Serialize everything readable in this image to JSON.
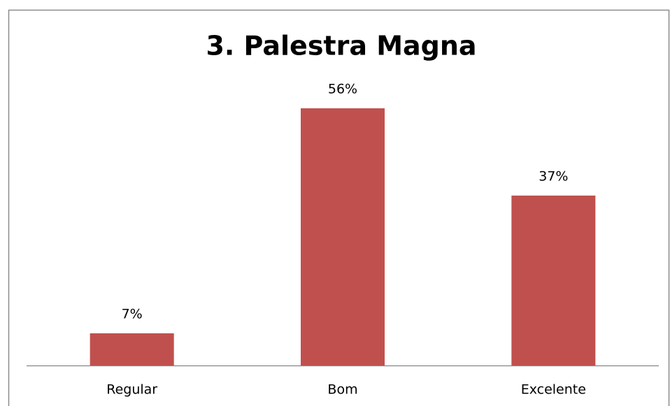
{
  "chart_data": {
    "type": "bar",
    "title": "3. Palestra Magna",
    "categories": [
      "Regular",
      "Bom",
      "Excelente"
    ],
    "values": [
      7,
      56,
      37
    ],
    "value_labels": [
      "7%",
      "56%",
      "37%"
    ],
    "color": "#c0504d"
  }
}
